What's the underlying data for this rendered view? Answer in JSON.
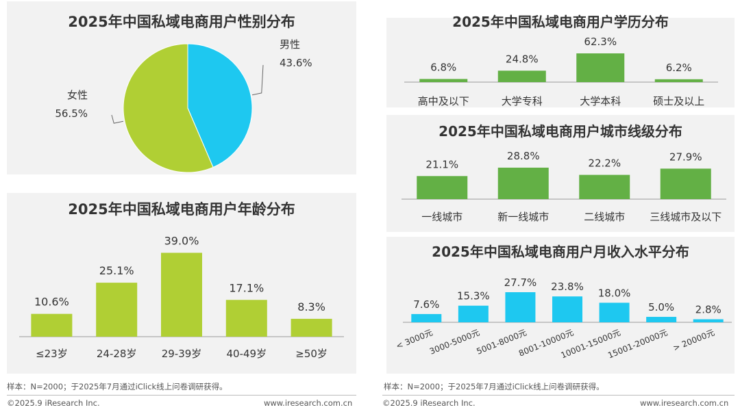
{
  "colors": {
    "green": "#b0cf34",
    "blue": "#1ec8f0",
    "dark_green": "#63b045",
    "axis": "#999999",
    "text": "#333333"
  },
  "chart_data": [
    {
      "type": "pie",
      "title": "2025年中国私域电商用户性别分布",
      "categories": [
        "男性",
        "女性"
      ],
      "values": [
        43.6,
        56.5
      ],
      "value_labels": [
        "43.6%",
        "56.5%"
      ],
      "colors": [
        "#1ec8f0",
        "#b0cf34"
      ]
    },
    {
      "type": "bar",
      "title": "2025年中国私域电商用户年龄分布",
      "categories": [
        "≤23岁",
        "24-28岁",
        "29-39岁",
        "40-49岁",
        "≥50岁"
      ],
      "values": [
        10.6,
        25.1,
        39.0,
        17.1,
        8.3
      ],
      "value_labels": [
        "10.6%",
        "25.1%",
        "39.0%",
        "17.1%",
        "8.3%"
      ],
      "ylim": [
        0,
        42
      ],
      "color": "#b0cf34"
    },
    {
      "type": "bar",
      "title": "2025年中国私域电商用户学历分布",
      "categories": [
        "高中及以下",
        "大学专科",
        "大学本科",
        "硕士及以上"
      ],
      "values": [
        6.8,
        24.8,
        62.3,
        6.2
      ],
      "value_labels": [
        "6.8%",
        "24.8%",
        "62.3%",
        "6.2%"
      ],
      "ylim": [
        0,
        62.3
      ],
      "color": "#63b045"
    },
    {
      "type": "bar",
      "title": "2025年中国私域电商用户城市线级分布",
      "categories": [
        "一线城市",
        "新一线城市",
        "二线城市",
        "三线城市及以下"
      ],
      "values": [
        21.1,
        28.8,
        22.2,
        27.9
      ],
      "value_labels": [
        "21.1%",
        "28.8%",
        "22.2%",
        "27.9%"
      ],
      "ylim": [
        0,
        28.8
      ],
      "color": "#63b045"
    },
    {
      "type": "bar",
      "title": "2025年中国私域电商用户月收入水平分布",
      "categories": [
        "< 3000元",
        "3000-5000元",
        "5001-8000元",
        "8001-10000元",
        "10001-15000元",
        "15001-20000元",
        "> 20000元"
      ],
      "values": [
        7.6,
        15.3,
        27.7,
        23.8,
        18.0,
        5.0,
        2.8
      ],
      "value_labels": [
        "7.6%",
        "15.3%",
        "27.7%",
        "23.8%",
        "18.0%",
        "5.0%",
        "2.8%"
      ],
      "ylim": [
        0,
        27.7
      ],
      "color": "#1ec8f0"
    }
  ],
  "notes": {
    "left": "样本：N=2000；于2025年7月通过iClick线上问卷调研获得。",
    "right": "样本：N=2000；于2025年7月通过iClick线上问卷调研获得。"
  },
  "footer": {
    "copyright_left": "©2025.9 iResearch Inc.",
    "site_left": "www.iresearch.com.cn",
    "copyright_right": "©2025.9 iResearch Inc.",
    "site_right": "www.iresearch.com.cn"
  }
}
